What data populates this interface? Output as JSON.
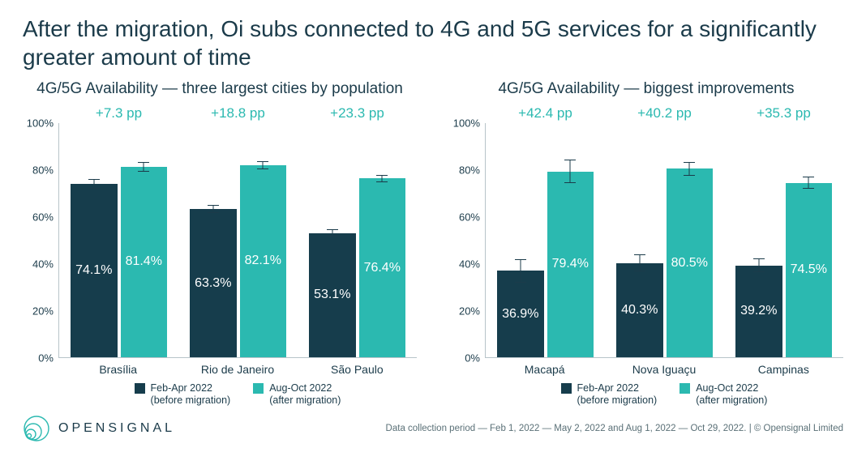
{
  "title": "After the migration, Oi subs connected to 4G and 5G services for a significantly greater amount of time",
  "colors": {
    "before": "#163d4c",
    "after": "#2bb9b0",
    "text": "#1b3b4a",
    "delta": "#2bb9b0",
    "axis": "#b8c4c9",
    "bg": "#ffffff"
  },
  "yaxis": {
    "min": 0,
    "max": 100,
    "ticks": [
      0,
      20,
      40,
      60,
      80,
      100
    ],
    "tick_labels": [
      "0%",
      "20%",
      "40%",
      "60%",
      "80%",
      "100%"
    ]
  },
  "panels": [
    {
      "subtitle": "4G/5G Availability — three largest cities by population",
      "groups": [
        {
          "city": "Brasília",
          "delta": "+7.3 pp",
          "before": 74.1,
          "after": 81.4,
          "before_label": "74.1%",
          "after_label": "81.4%",
          "err_before": 2.0,
          "err_after": 2.0
        },
        {
          "city": "Rio de Janeiro",
          "delta": "+18.8 pp",
          "before": 63.3,
          "after": 82.1,
          "before_label": "63.3%",
          "after_label": "82.1%",
          "err_before": 1.8,
          "err_after": 1.8
        },
        {
          "city": "São Paulo",
          "delta": "+23.3 pp",
          "before": 53.1,
          "after": 76.4,
          "before_label": "53.1%",
          "after_label": "76.4%",
          "err_before": 1.5,
          "err_after": 1.5
        }
      ]
    },
    {
      "subtitle": "4G/5G Availability — biggest improvements",
      "groups": [
        {
          "city": "Macapá",
          "delta": "+42.4 pp",
          "before": 36.9,
          "after": 79.4,
          "before_label": "36.9%",
          "after_label": "79.4%",
          "err_before": 5.0,
          "err_after": 5.0
        },
        {
          "city": "Nova Iguaçu",
          "delta": "+40.2 pp",
          "before": 40.3,
          "after": 80.5,
          "before_label": "40.3%",
          "after_label": "80.5%",
          "err_before": 3.5,
          "err_after": 3.0
        },
        {
          "city": "Campinas",
          "delta": "+35.3 pp",
          "before": 39.2,
          "after": 74.5,
          "before_label": "39.2%",
          "after_label": "74.5%",
          "err_before": 3.0,
          "err_after": 2.5
        }
      ]
    }
  ],
  "legend": {
    "before": {
      "line1": "Feb-Apr 2022",
      "line2": "(before migration)"
    },
    "after": {
      "line1": "Aug-Oct 2022",
      "line2": "(after migration)"
    }
  },
  "brand": "OPENSIGNAL",
  "footnote": "Data collection period — Feb 1, 2022 — May 2, 2022 and Aug 1, 2022 — Oct 29, 2022. | © Opensignal Limited"
}
